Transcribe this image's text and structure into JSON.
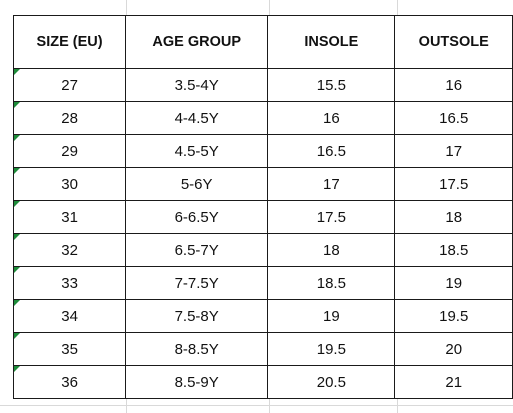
{
  "table": {
    "headers": [
      "SIZE (EU)",
      "AGE GROUP",
      "INSOLE",
      "OUTSOLE"
    ],
    "rows": [
      [
        "27",
        "3.5-4Y",
        "15.5",
        "16"
      ],
      [
        "28",
        "4-4.5Y",
        "16",
        "16.5"
      ],
      [
        "29",
        "4.5-5Y",
        "16.5",
        "17"
      ],
      [
        "30",
        "5-6Y",
        "17",
        "17.5"
      ],
      [
        "31",
        "6-6.5Y",
        "17.5",
        "18"
      ],
      [
        "32",
        "6.5-7Y",
        "18",
        "18.5"
      ],
      [
        "33",
        "7-7.5Y",
        "18.5",
        "19"
      ],
      [
        "34",
        "7.5-8Y",
        "19",
        "19.5"
      ],
      [
        "35",
        "8-8.5Y",
        "19.5",
        "20"
      ],
      [
        "36",
        "8.5-9Y",
        "20.5",
        "21"
      ]
    ]
  },
  "colors": {
    "border": "#1a1a1a",
    "gridline": "#d9d9d9",
    "error_flag": "#1e8c3a"
  },
  "icons": {
    "cell_flag": "number-stored-as-text-indicator-icon"
  }
}
